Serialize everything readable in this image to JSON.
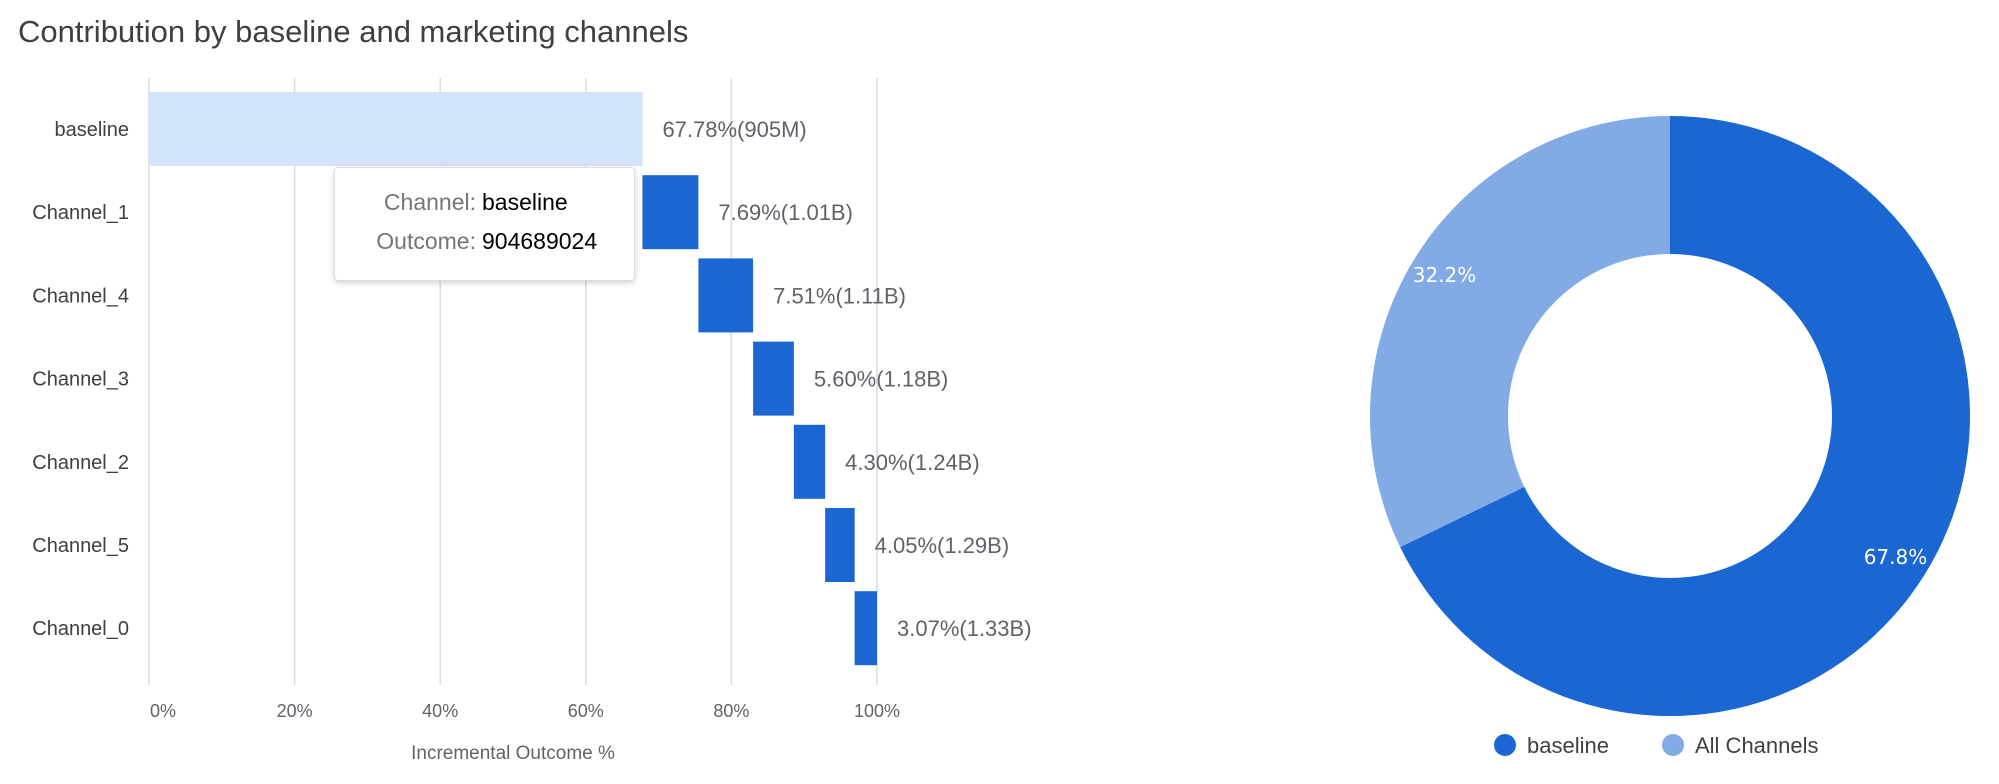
{
  "chart_data": [
    {
      "type": "bar",
      "subtype": "waterfall-horizontal",
      "title": "Contribution by baseline and marketing channels",
      "xlabel": "Incremental Outcome %",
      "ylabel": "",
      "xlim": [
        0,
        100
      ],
      "x_ticks": [
        "0%",
        "20%",
        "40%",
        "60%",
        "80%",
        "100%"
      ],
      "grid": true,
      "categories": [
        "baseline",
        "Channel_1",
        "Channel_4",
        "Channel_3",
        "Channel_2",
        "Channel_5",
        "Channel_0"
      ],
      "values": [
        67.78,
        7.69,
        7.51,
        5.6,
        4.3,
        4.05,
        3.07
      ],
      "data_labels": [
        "67.78%(905M)",
        "7.69%(1.01B)",
        "7.51%(1.11B)",
        "5.60%(1.18B)",
        "4.30%(1.24B)",
        "4.05%(1.29B)",
        "3.07%(1.33B)"
      ],
      "colors": {
        "baseline": "#d2e3fc",
        "channel": "#1a66d2"
      },
      "tooltip": {
        "channel_label": "Channel:",
        "channel_value": "baseline",
        "outcome_label": "Outcome:",
        "outcome_value": "904689024"
      }
    },
    {
      "type": "pie",
      "donut": true,
      "categories": [
        "baseline",
        "All Channels"
      ],
      "values": [
        67.8,
        32.2
      ],
      "data_labels": [
        "67.8%",
        "32.2%"
      ],
      "colors": [
        "#1a66d2",
        "#82abe6"
      ],
      "legend": [
        "baseline",
        "All Channels"
      ],
      "legend_position": "bottom"
    }
  ]
}
